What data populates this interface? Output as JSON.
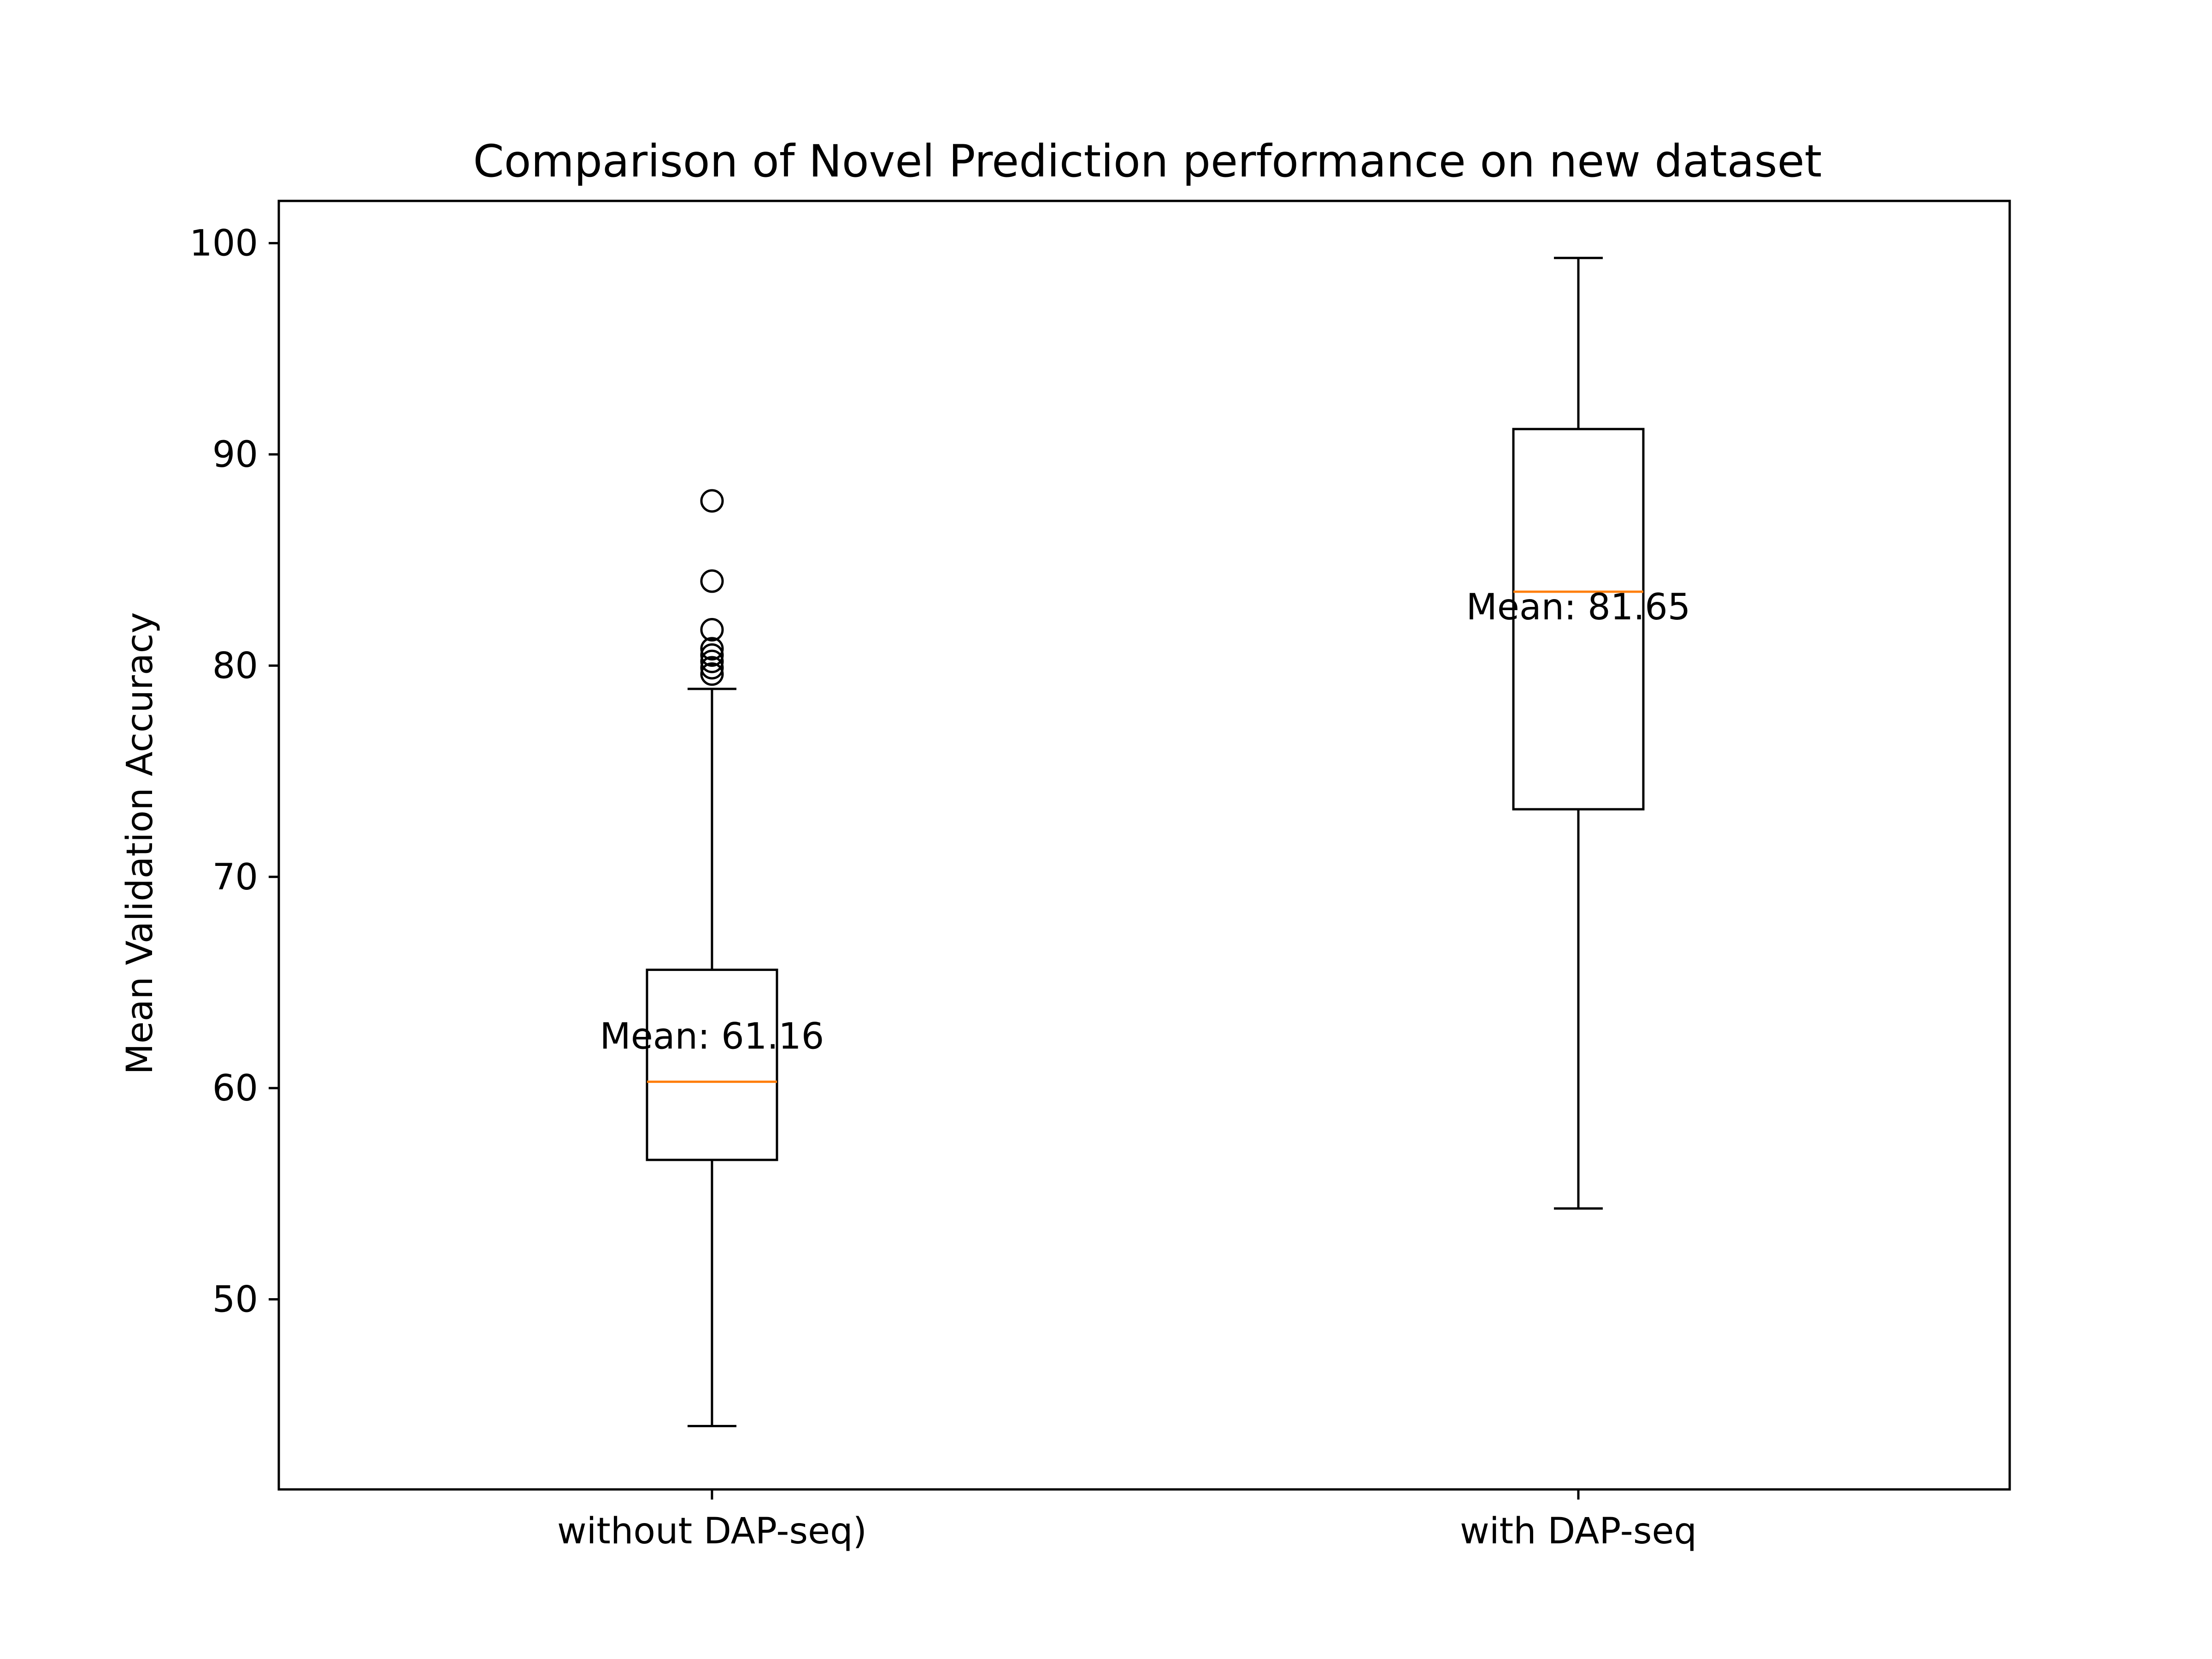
{
  "chart_data": {
    "type": "box",
    "title": "Comparison of Novel Prediction performance on new dataset",
    "xlabel": "",
    "ylabel": "Mean Validation Accuracy",
    "ylim": [
      41.0,
      102.0
    ],
    "yticks": [
      50,
      60,
      70,
      80,
      90,
      100
    ],
    "categories": [
      "without DAP-seq)",
      "with DAP-seq"
    ],
    "boxes": [
      {
        "category": "without DAP-seq)",
        "whisker_low": 44.0,
        "q1": 56.6,
        "median": 60.3,
        "q3": 65.6,
        "whisker_high": 78.9,
        "outliers": [
          79.6,
          79.9,
          80.2,
          80.5,
          80.8,
          81.7,
          84.0,
          87.8
        ],
        "annotation": "Mean: 61.16"
      },
      {
        "category": "with DAP-seq",
        "whisker_low": 54.3,
        "q1": 73.2,
        "median": 83.5,
        "q3": 91.2,
        "whisker_high": 99.3,
        "outliers": [],
        "annotation": "Mean: 81.65"
      }
    ],
    "colors": {
      "box": "#000000",
      "median": "#ff7f0e",
      "background": "#ffffff"
    },
    "grid": false
  }
}
